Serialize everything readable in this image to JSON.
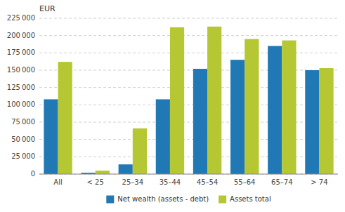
{
  "chart_data": {
    "type": "bar",
    "ylabel": "EUR",
    "categories": [
      "All",
      "< 25",
      "25–34",
      "35–44",
      "45–54",
      "55–64",
      "65–74",
      "> 74"
    ],
    "series": [
      {
        "name": "Net wealth (assets - debt)",
        "color": "#2079b4",
        "values": [
          108000,
          2000,
          14000,
          108000,
          152000,
          165000,
          185000,
          150000
        ]
      },
      {
        "name": "Assets total",
        "color": "#b5c732",
        "values": [
          162000,
          5000,
          66000,
          212000,
          213000,
          195000,
          193000,
          153000
        ]
      }
    ],
    "ylim": [
      0,
      225000
    ],
    "yticks": [
      0,
      {
        "value": 25000,
        "label": "25 000"
      },
      {
        "value": 50000,
        "label": "50 000"
      },
      {
        "value": 75000,
        "label": "75 000"
      },
      {
        "value": 100000,
        "label": "100 000"
      },
      {
        "value": 125000,
        "label": "125 000"
      },
      {
        "value": 150000,
        "label": "150 000"
      },
      {
        "value": 175000,
        "label": "175 000"
      },
      {
        "value": 200000,
        "label": "200 000"
      },
      {
        "value": 225000,
        "label": "225 000"
      }
    ],
    "grid": true,
    "legend": "bottom"
  }
}
